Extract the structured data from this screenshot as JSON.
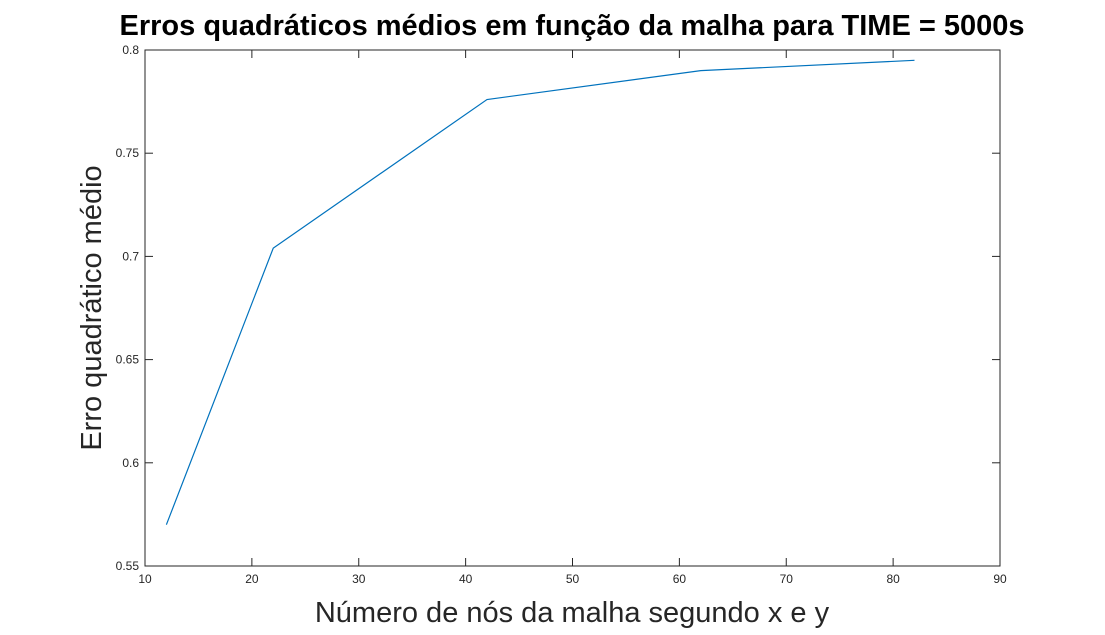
{
  "chart_data": {
    "type": "line",
    "title": "Erros quadráticos médios em função da malha para TIME = 5000s",
    "xlabel": "Número de nós da malha segundo x e y",
    "ylabel": "Erro quadrático médio",
    "xlim": [
      10,
      90
    ],
    "ylim": [
      0.55,
      0.8
    ],
    "xticks": [
      10,
      20,
      30,
      40,
      50,
      60,
      70,
      80,
      90
    ],
    "yticks": [
      0.55,
      0.6,
      0.65,
      0.7,
      0.75,
      0.8
    ],
    "xtick_labels": [
      "10",
      "20",
      "30",
      "40",
      "50",
      "60",
      "70",
      "80",
      "90"
    ],
    "ytick_labels": [
      "0.55",
      "0.6",
      "0.65",
      "0.7",
      "0.75",
      "0.8"
    ],
    "grid": false,
    "series": [
      {
        "x": [
          12,
          22,
          42,
          62,
          82
        ],
        "y": [
          0.57,
          0.704,
          0.776,
          0.79,
          0.795
        ],
        "color": "#0072BD"
      }
    ]
  }
}
